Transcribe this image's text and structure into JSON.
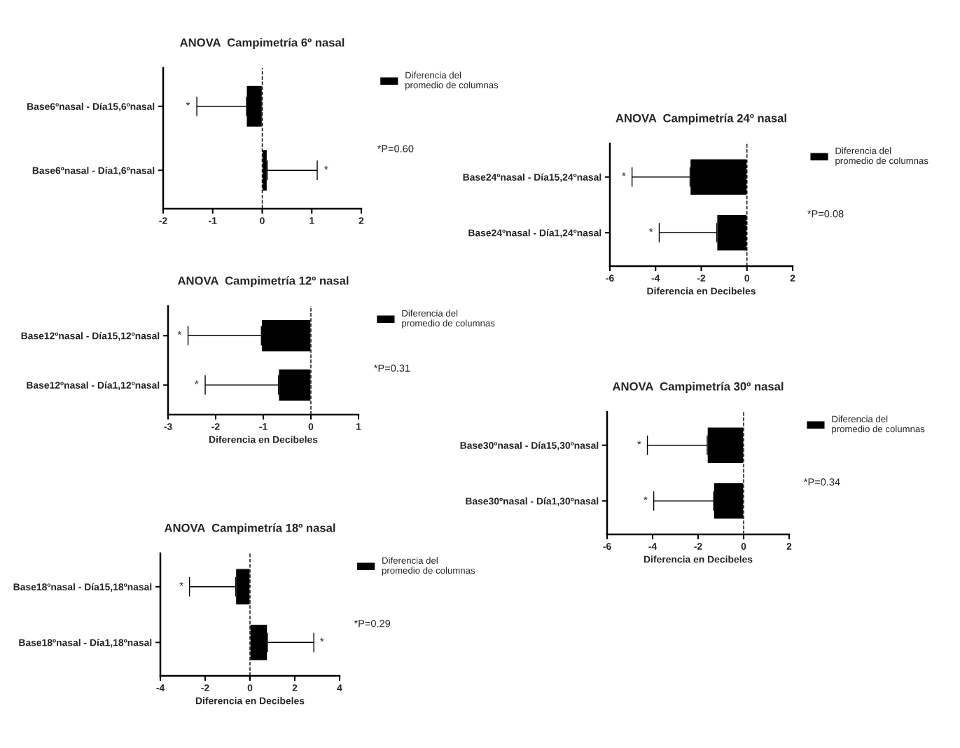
{
  "chart_data": [
    {
      "type": "bar",
      "orientation": "horizontal",
      "title": "ANOVA  Campimetría 6º nasal",
      "categories": [
        "Base6ºnasal - Día15,6ºnasal",
        "Base6ºnasal - Día1,6ºnasal"
      ],
      "series": [
        {
          "name": "Diferencia del promedio de columnas",
          "color": "#000000",
          "values": [
            -0.32,
            0.1
          ],
          "errors": [
            [
              -1.32,
              -0.32
            ],
            [
              0.1,
              1.11
            ]
          ]
        }
      ],
      "xlim": [
        -2,
        2
      ],
      "xticks": [
        -2,
        -1,
        0,
        1,
        2
      ],
      "ref_lines": [
        {
          "axis": "x",
          "value": 0,
          "line_style": "dashed"
        }
      ],
      "legend": "right",
      "grid": false,
      "annotations": [
        "*",
        "*",
        "*P=0.60"
      ]
    },
    {
      "type": "bar",
      "orientation": "horizontal",
      "title": "ANOVA  Campimetría 24º nasal",
      "xlabel": "Diferencia en Decibeles",
      "categories": [
        "Base24ºnasal - Día15,24ºnasal",
        "Base24ºnasal - Día1,24ºnasal"
      ],
      "series": [
        {
          "name": "Diferencia del promedio de columnas",
          "color": "#000000",
          "values": [
            -2.49,
            -1.32
          ],
          "errors": [
            [
              -5.03,
              -2.49
            ],
            [
              -3.84,
              -1.32
            ]
          ]
        }
      ],
      "xlim": [
        -6,
        2
      ],
      "xticks": [
        -6,
        -4,
        -2,
        0,
        2
      ],
      "ref_lines": [
        {
          "axis": "x",
          "value": 0,
          "line_style": "dashed"
        }
      ],
      "legend": "right",
      "grid": false,
      "annotations": [
        "*",
        "*",
        "*P=0.08"
      ]
    },
    {
      "type": "bar",
      "orientation": "horizontal",
      "title": "ANOVA  Campimetría 12º nasal",
      "xlabel": "Diferencia en Decibeles",
      "categories": [
        "Base12ºnasal - Día15,12ºnasal",
        "Base12ºnasal - Día1,12ºnasal"
      ],
      "series": [
        {
          "name": "Diferencia del promedio de columnas",
          "color": "#000000",
          "values": [
            -1.04,
            -0.68
          ],
          "errors": [
            [
              -2.58,
              -1.04
            ],
            [
              -2.22,
              -0.68
            ]
          ]
        }
      ],
      "xlim": [
        -3,
        1
      ],
      "xticks": [
        -3,
        -2,
        -1,
        0,
        1
      ],
      "ref_lines": [
        {
          "axis": "x",
          "value": 0,
          "line_style": "dashed"
        }
      ],
      "legend": "right",
      "grid": false,
      "annotations": [
        "*",
        "*",
        "*P=0.31"
      ]
    },
    {
      "type": "bar",
      "orientation": "horizontal",
      "title": "ANOVA  Campimetría 30º nasal",
      "xlabel": "Diferencia en Decibeles",
      "categories": [
        "Base30ºnasal - Día15,30ºnasal",
        "Base30ºnasal - Día1,30ºnasal"
      ],
      "series": [
        {
          "name": "Diferencia del promedio de columnas",
          "color": "#000000",
          "values": [
            -1.6,
            -1.32
          ],
          "errors": [
            [
              -4.23,
              -1.6
            ],
            [
              -3.95,
              -1.32
            ]
          ]
        }
      ],
      "xlim": [
        -6,
        2
      ],
      "xticks": [
        -6,
        -4,
        -2,
        0,
        2
      ],
      "ref_lines": [
        {
          "axis": "x",
          "value": 0,
          "line_style": "dashed"
        }
      ],
      "legend": "right",
      "grid": false,
      "annotations": [
        "*",
        "*",
        "*P=0.34"
      ]
    },
    {
      "type": "bar",
      "orientation": "horizontal",
      "title": "ANOVA  Campimetría 18º nasal",
      "xlabel": "Diferencia en Decibeles",
      "categories": [
        "Base18ºnasal - Día15,18ºnasal",
        "Base18ºnasal - Día1,18ºnasal"
      ],
      "series": [
        {
          "name": "Diferencia del promedio de columnas",
          "color": "#000000",
          "values": [
            -0.64,
            0.78
          ],
          "errors": [
            [
              -2.7,
              -0.64
            ],
            [
              0.78,
              2.85
            ]
          ]
        }
      ],
      "xlim": [
        -4,
        4
      ],
      "xticks": [
        -4,
        -2,
        0,
        2,
        4
      ],
      "ref_lines": [
        {
          "axis": "x",
          "value": 0,
          "line_style": "dashed"
        }
      ],
      "legend": "right",
      "grid": false,
      "annotations": [
        "*",
        "*",
        "*P=0.29"
      ]
    }
  ]
}
